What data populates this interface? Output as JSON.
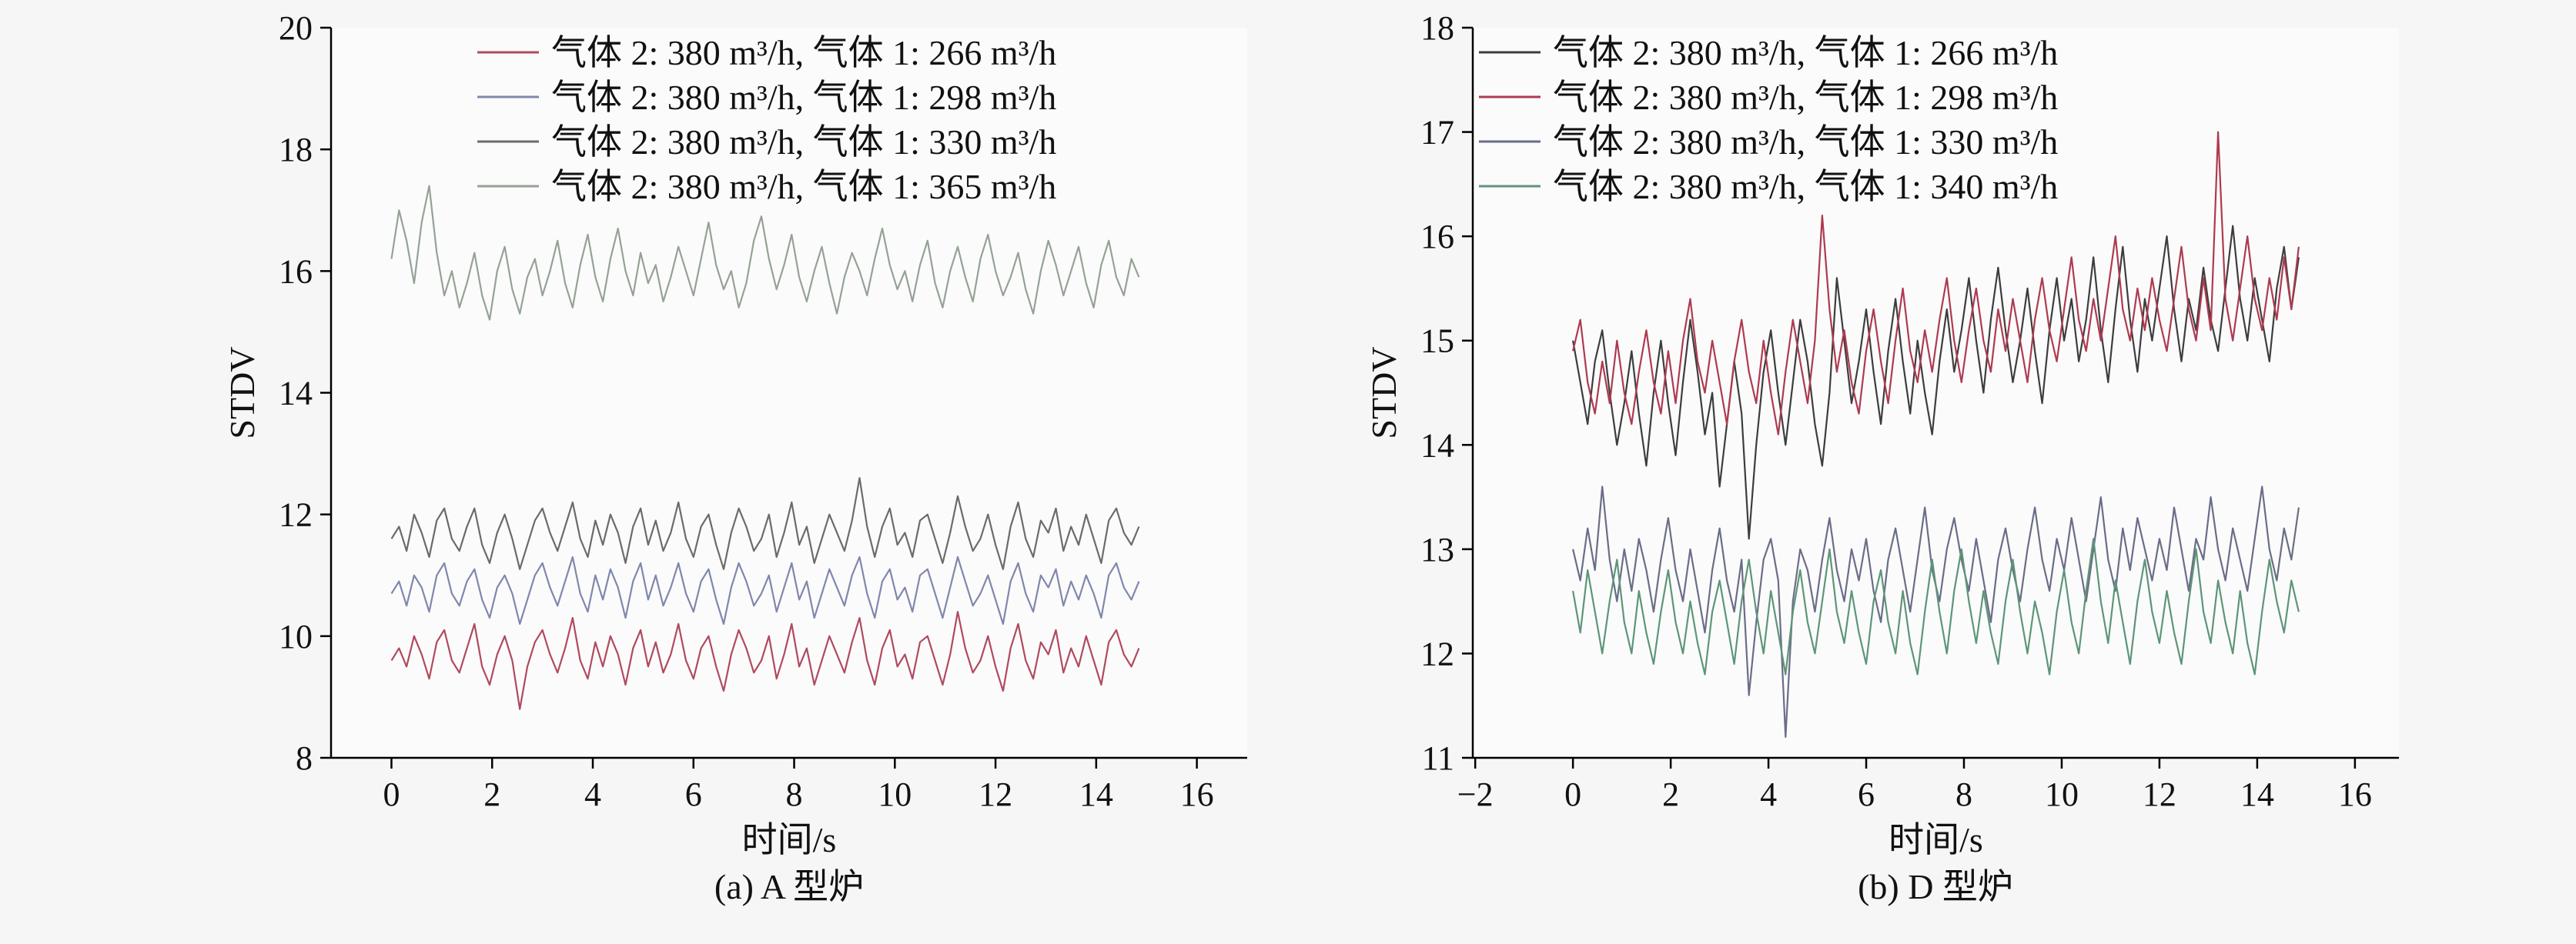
{
  "page": {
    "background": "#f6f6f6"
  },
  "chart_data": [
    {
      "id": "a",
      "type": "line",
      "caption": "(a) A 型炉",
      "xlabel": "时间/s",
      "ylabel": "STDV",
      "xlim": [
        -1.2,
        17
      ],
      "ylim": [
        8,
        20
      ],
      "xticks": [
        0,
        2,
        4,
        6,
        8,
        10,
        12,
        14,
        16
      ],
      "yticks": [
        8,
        10,
        12,
        14,
        16,
        18,
        20
      ],
      "legend_position": "top-left",
      "x_start": 0,
      "x_step": 0.15,
      "series": [
        {
          "name": "气体 2: 380 m³/h, 气体 1: 266 m³/h",
          "color": "#b04a5e",
          "values": [
            9.6,
            9.8,
            9.5,
            10.0,
            9.7,
            9.3,
            9.9,
            10.1,
            9.6,
            9.4,
            9.8,
            10.2,
            9.5,
            9.2,
            9.7,
            10.0,
            9.6,
            8.8,
            9.5,
            9.9,
            10.1,
            9.7,
            9.4,
            9.8,
            10.3,
            9.6,
            9.3,
            9.9,
            9.5,
            10.0,
            9.7,
            9.2,
            9.8,
            10.1,
            9.5,
            9.9,
            9.4,
            9.7,
            10.2,
            9.6,
            9.3,
            9.8,
            10.0,
            9.5,
            9.1,
            9.7,
            10.1,
            9.8,
            9.4,
            9.6,
            10.0,
            9.3,
            9.7,
            10.2,
            9.5,
            9.8,
            9.2,
            9.6,
            10.0,
            9.7,
            9.4,
            9.9,
            10.3,
            9.6,
            9.2,
            9.8,
            10.1,
            9.5,
            9.7,
            9.3,
            9.9,
            10.0,
            9.6,
            9.2,
            9.7,
            10.4,
            9.8,
            9.4,
            9.6,
            10.0,
            9.5,
            9.1,
            9.8,
            10.2,
            9.6,
            9.3,
            9.9,
            9.7,
            10.1,
            9.4,
            9.8,
            9.5,
            10.0,
            9.6,
            9.2,
            9.9,
            10.1,
            9.7,
            9.5,
            9.8
          ]
        },
        {
          "name": "气体 2: 380 m³/h, 气体 1: 298 m³/h",
          "color": "#8087ac",
          "values": [
            10.7,
            10.9,
            10.5,
            11.0,
            10.8,
            10.4,
            11.0,
            11.2,
            10.7,
            10.5,
            10.9,
            11.1,
            10.6,
            10.3,
            10.8,
            11.0,
            10.7,
            10.2,
            10.6,
            11.0,
            11.2,
            10.8,
            10.5,
            10.9,
            11.3,
            10.7,
            10.4,
            11.0,
            10.6,
            11.1,
            10.8,
            10.3,
            10.9,
            11.2,
            10.6,
            11.0,
            10.5,
            10.8,
            11.2,
            10.7,
            10.4,
            10.9,
            11.1,
            10.6,
            10.2,
            10.8,
            11.2,
            10.9,
            10.5,
            10.7,
            11.0,
            10.4,
            10.8,
            11.2,
            10.6,
            10.9,
            10.3,
            10.7,
            11.1,
            10.8,
            10.5,
            11.0,
            11.3,
            10.7,
            10.3,
            10.9,
            11.1,
            10.6,
            10.8,
            10.4,
            11.0,
            11.1,
            10.7,
            10.3,
            10.8,
            11.3,
            10.9,
            10.5,
            10.7,
            11.0,
            10.6,
            10.2,
            10.9,
            11.2,
            10.7,
            10.4,
            11.0,
            10.8,
            11.1,
            10.5,
            10.9,
            10.6,
            11.0,
            10.7,
            10.3,
            11.0,
            11.2,
            10.8,
            10.6,
            10.9
          ]
        },
        {
          "name": "气体 2: 380 m³/h, 气体 1: 330 m³/h",
          "color": "#6b6b6b",
          "values": [
            11.6,
            11.8,
            11.4,
            12.0,
            11.7,
            11.3,
            11.9,
            12.1,
            11.6,
            11.4,
            11.8,
            12.1,
            11.5,
            11.2,
            11.7,
            12.0,
            11.6,
            11.1,
            11.5,
            11.9,
            12.1,
            11.7,
            11.4,
            11.8,
            12.2,
            11.6,
            11.3,
            11.9,
            11.5,
            12.0,
            11.7,
            11.2,
            11.8,
            12.1,
            11.5,
            11.9,
            11.4,
            11.7,
            12.2,
            11.6,
            11.3,
            11.8,
            12.0,
            11.5,
            11.1,
            11.7,
            12.1,
            11.8,
            11.4,
            11.6,
            12.0,
            11.3,
            11.7,
            12.2,
            11.5,
            11.8,
            11.2,
            11.6,
            12.0,
            11.7,
            11.4,
            11.9,
            12.6,
            11.8,
            11.3,
            11.8,
            12.1,
            11.5,
            11.7,
            11.3,
            11.9,
            12.0,
            11.6,
            11.2,
            11.7,
            12.3,
            11.8,
            11.4,
            11.6,
            12.0,
            11.5,
            11.1,
            11.8,
            12.2,
            11.6,
            11.3,
            11.9,
            11.7,
            12.1,
            11.4,
            11.8,
            11.5,
            12.0,
            11.6,
            11.2,
            11.9,
            12.1,
            11.7,
            11.5,
            11.8
          ]
        },
        {
          "name": "气体 2: 380 m³/h, 气体 1: 365 m³/h",
          "color": "#95a295",
          "values": [
            16.2,
            17.0,
            16.5,
            15.8,
            16.8,
            17.4,
            16.3,
            15.6,
            16.0,
            15.4,
            15.8,
            16.3,
            15.6,
            15.2,
            16.0,
            16.4,
            15.7,
            15.3,
            15.9,
            16.2,
            15.6,
            16.0,
            16.5,
            15.8,
            15.4,
            16.1,
            16.6,
            15.9,
            15.5,
            16.2,
            16.7,
            16.0,
            15.6,
            16.3,
            15.8,
            16.1,
            15.5,
            15.9,
            16.4,
            16.0,
            15.6,
            16.2,
            16.8,
            16.1,
            15.7,
            16.0,
            15.4,
            15.8,
            16.5,
            16.9,
            16.2,
            15.7,
            16.1,
            16.6,
            15.9,
            15.5,
            16.0,
            16.4,
            15.8,
            15.3,
            15.9,
            16.3,
            16.0,
            15.6,
            16.2,
            16.7,
            16.1,
            15.7,
            16.0,
            15.5,
            16.1,
            16.5,
            15.8,
            15.4,
            16.0,
            16.4,
            15.9,
            15.5,
            16.2,
            16.6,
            16.0,
            15.6,
            15.9,
            16.3,
            15.7,
            15.3,
            16.0,
            16.5,
            16.1,
            15.6,
            16.0,
            16.4,
            15.8,
            15.4,
            16.1,
            16.5,
            15.9,
            15.6,
            16.2,
            15.9
          ]
        }
      ]
    },
    {
      "id": "b",
      "type": "line",
      "caption": "(b) D 型炉",
      "xlabel": "时间/s",
      "ylabel": "STDV",
      "xlim": [
        -2.05,
        16.9
      ],
      "ylim": [
        11,
        18
      ],
      "xticks": [
        -2,
        0,
        2,
        4,
        6,
        8,
        10,
        12,
        14,
        16
      ],
      "yticks": [
        11,
        12,
        13,
        14,
        15,
        16,
        17,
        18
      ],
      "legend_position": "top-left",
      "x_start": 0,
      "x_step": 0.15,
      "series": [
        {
          "name": "气体 2: 380 m³/h, 气体 1: 266 m³/h",
          "color": "#3d3d3d",
          "values": [
            15.0,
            14.6,
            14.2,
            14.8,
            15.1,
            14.5,
            14.0,
            14.4,
            14.9,
            14.3,
            13.8,
            14.5,
            15.0,
            14.4,
            13.9,
            14.6,
            15.2,
            14.7,
            14.1,
            14.5,
            13.6,
            14.2,
            14.8,
            14.3,
            13.1,
            14.0,
            14.7,
            15.1,
            14.5,
            14.0,
            14.6,
            15.2,
            14.8,
            14.2,
            13.8,
            14.5,
            15.6,
            15.0,
            14.4,
            14.8,
            15.3,
            14.7,
            14.2,
            14.9,
            15.4,
            14.8,
            14.3,
            15.0,
            14.5,
            14.1,
            14.8,
            15.3,
            14.7,
            15.1,
            15.6,
            15.0,
            14.5,
            15.2,
            15.7,
            15.1,
            14.6,
            15.0,
            15.5,
            14.9,
            14.4,
            15.1,
            15.6,
            15.0,
            15.4,
            14.8,
            15.2,
            15.8,
            15.1,
            14.6,
            15.3,
            15.9,
            15.2,
            14.7,
            15.4,
            15.0,
            15.5,
            16.0,
            15.3,
            14.8,
            15.4,
            15.1,
            15.7,
            15.2,
            14.9,
            15.5,
            16.1,
            15.4,
            15.0,
            15.6,
            15.2,
            14.8,
            15.5,
            15.9,
            15.3,
            15.8
          ]
        },
        {
          "name": "气体 2: 380 m³/h, 气体 1: 298 m³/h",
          "color": "#ae3a50",
          "values": [
            14.9,
            15.2,
            14.6,
            14.3,
            14.8,
            14.4,
            15.0,
            14.5,
            14.2,
            14.7,
            15.1,
            14.6,
            14.3,
            14.9,
            14.4,
            15.0,
            15.4,
            14.8,
            14.5,
            15.0,
            14.6,
            14.2,
            14.8,
            15.2,
            14.7,
            14.4,
            15.0,
            14.5,
            14.1,
            14.7,
            15.2,
            14.8,
            14.4,
            15.0,
            16.2,
            15.3,
            14.7,
            15.1,
            14.6,
            14.3,
            14.9,
            15.3,
            14.8,
            14.4,
            15.0,
            15.5,
            14.9,
            14.6,
            15.1,
            14.7,
            15.2,
            15.6,
            15.0,
            14.6,
            15.1,
            15.5,
            15.0,
            14.7,
            15.3,
            14.9,
            15.4,
            15.0,
            14.6,
            15.2,
            15.6,
            15.1,
            14.8,
            15.3,
            15.8,
            15.2,
            14.9,
            15.4,
            15.0,
            15.5,
            16.0,
            15.3,
            15.0,
            15.5,
            15.1,
            15.6,
            15.2,
            14.9,
            15.4,
            15.9,
            15.3,
            15.0,
            15.6,
            15.1,
            17.0,
            15.4,
            15.0,
            15.5,
            16.0,
            15.4,
            15.1,
            15.6,
            15.2,
            15.8,
            15.3,
            15.9
          ]
        },
        {
          "name": "气体 2: 380 m³/h, 气体 1: 330 m³/h",
          "color": "#6a6d87",
          "values": [
            13.0,
            12.7,
            13.2,
            12.8,
            13.6,
            12.9,
            12.5,
            13.0,
            12.6,
            13.1,
            12.8,
            12.4,
            12.9,
            13.3,
            12.8,
            12.5,
            13.0,
            12.6,
            12.2,
            12.8,
            13.2,
            12.7,
            12.4,
            12.9,
            11.6,
            12.3,
            12.9,
            13.1,
            12.7,
            11.2,
            12.5,
            13.0,
            12.8,
            12.4,
            12.9,
            13.3,
            12.8,
            12.5,
            13.0,
            12.7,
            13.1,
            12.6,
            12.3,
            12.9,
            13.2,
            12.8,
            12.4,
            12.9,
            13.4,
            12.8,
            12.5,
            13.0,
            13.3,
            12.9,
            12.6,
            13.1,
            12.7,
            12.3,
            12.9,
            13.2,
            12.8,
            12.5,
            13.0,
            13.4,
            12.9,
            12.6,
            13.1,
            12.8,
            13.3,
            12.9,
            12.5,
            13.0,
            13.5,
            12.9,
            12.6,
            13.2,
            12.8,
            13.3,
            13.0,
            12.7,
            13.1,
            12.8,
            13.4,
            13.0,
            12.6,
            13.1,
            12.9,
            13.5,
            13.0,
            12.7,
            13.2,
            12.9,
            12.6,
            13.1,
            13.6,
            13.0,
            12.7,
            13.2,
            12.9,
            13.4
          ]
        },
        {
          "name": "气体 2: 380 m³/h, 气体 1: 340 m³/h",
          "color": "#5d9579",
          "values": [
            12.6,
            12.2,
            12.8,
            12.4,
            12.0,
            12.5,
            12.9,
            12.3,
            12.0,
            12.6,
            12.2,
            11.9,
            12.4,
            12.8,
            12.3,
            12.0,
            12.5,
            12.1,
            11.8,
            12.4,
            12.7,
            12.3,
            11.9,
            12.5,
            12.9,
            12.4,
            12.0,
            12.6,
            12.2,
            11.8,
            12.4,
            12.8,
            12.3,
            12.0,
            12.5,
            13.0,
            12.4,
            12.1,
            12.6,
            12.2,
            11.9,
            12.5,
            12.8,
            12.3,
            12.0,
            12.6,
            12.1,
            11.8,
            12.4,
            12.9,
            12.4,
            12.0,
            12.6,
            13.0,
            12.5,
            12.1,
            12.6,
            12.2,
            11.9,
            12.5,
            12.9,
            12.4,
            12.0,
            12.5,
            12.2,
            11.8,
            12.4,
            12.8,
            12.3,
            12.0,
            12.6,
            13.1,
            12.5,
            12.1,
            12.7,
            12.3,
            11.9,
            12.5,
            12.9,
            12.4,
            12.1,
            12.6,
            12.2,
            11.9,
            12.5,
            13.0,
            12.4,
            12.1,
            12.7,
            12.3,
            12.0,
            12.6,
            12.1,
            11.8,
            12.4,
            12.9,
            12.5,
            12.2,
            12.7,
            12.4
          ]
        }
      ]
    }
  ]
}
